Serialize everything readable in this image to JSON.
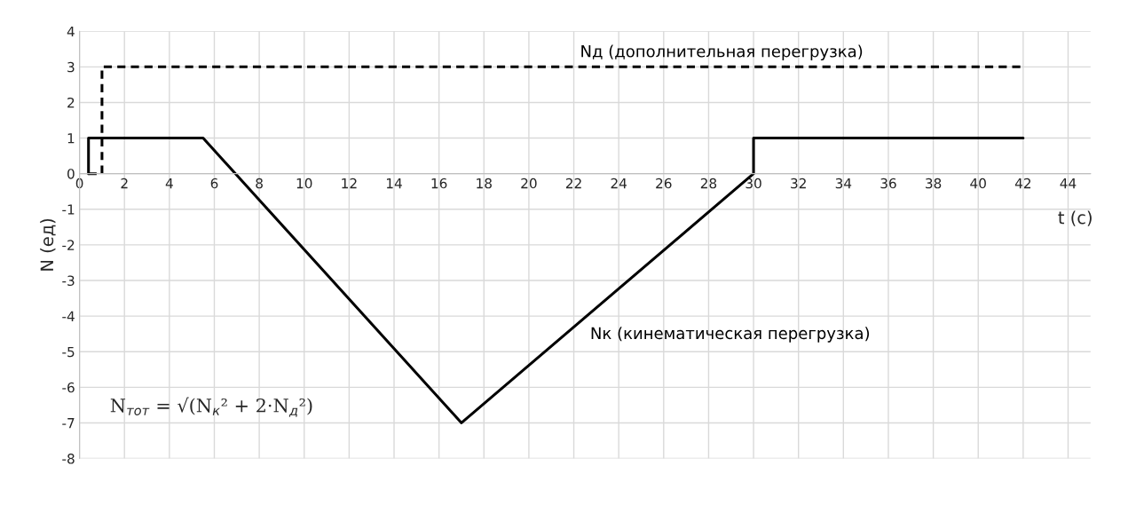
{
  "chart_data": {
    "type": "line",
    "xlabel": "t (c)",
    "ylabel": "N (ед)",
    "series": [
      {
        "name": "Nк (кинематическая перегрузка)",
        "color": "#000000",
        "line_style": "solid",
        "x": [
          0.4,
          0.4,
          5.5,
          17,
          30,
          30,
          42
        ],
        "values": [
          0,
          1,
          1,
          -7,
          0,
          1,
          1
        ]
      },
      {
        "name": "Nд (дополнительная перегрузка)",
        "color": "#000000",
        "line_style": "dashed",
        "x": [
          0.4,
          1,
          1,
          42
        ],
        "values": [
          0,
          0,
          3,
          3
        ]
      }
    ],
    "annotations": [
      "N$_{тот}$ = √(N$_{к}$² + 2·N$_{д}$²)"
    ],
    "xlim": [
      0,
      45
    ],
    "xticks": [
      0,
      2,
      4,
      6,
      8,
      10,
      12,
      14,
      16,
      18,
      20,
      22,
      24,
      26,
      28,
      30,
      32,
      34,
      36,
      38,
      40,
      42,
      44
    ],
    "ylim": [
      -8,
      4
    ],
    "yticks": [
      -8,
      -7,
      -6,
      -5,
      -4,
      -3,
      -2,
      -1,
      0,
      1,
      2,
      3,
      4
    ],
    "grid": true,
    "marker": "none",
    "legend": false
  }
}
